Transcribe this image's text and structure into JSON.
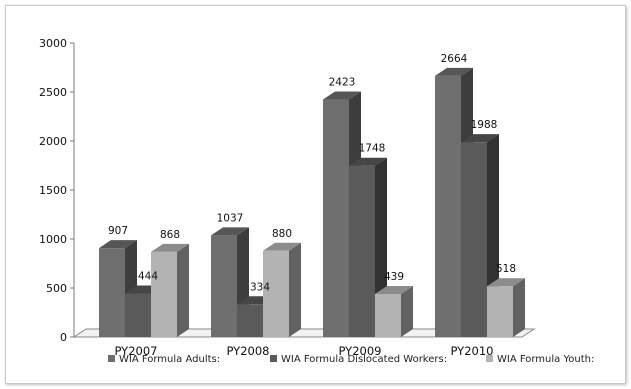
{
  "chart_data": {
    "type": "bar",
    "categories": [
      "PY2007",
      "PY2008",
      "PY2009",
      "PY2010"
    ],
    "series": [
      {
        "name": "WIA Formula Adults:",
        "values": [
          907,
          1037,
          2423,
          2664
        ]
      },
      {
        "name": "WIA Formula Dislocated Workers:",
        "values": [
          444,
          334,
          1748,
          1988
        ]
      },
      {
        "name": "WIA Formula Youth:",
        "values": [
          868,
          880,
          439,
          518
        ]
      }
    ],
    "ylim": [
      0,
      3000
    ],
    "yticks": [
      0,
      500,
      1000,
      1500,
      2000,
      2500,
      3000
    ],
    "grid": false,
    "legend_position": "bottom",
    "colors": [
      "#6e6e6e",
      "#5a5a5a",
      "#b3b3b3"
    ]
  }
}
